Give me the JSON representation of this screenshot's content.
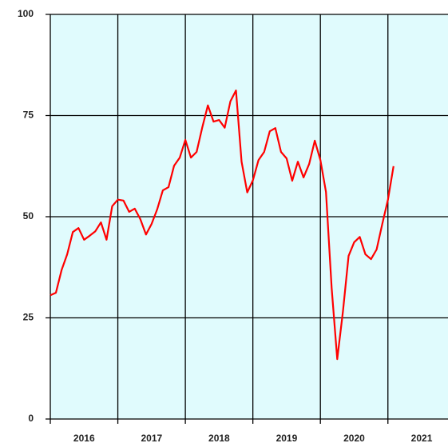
{
  "chart_data": {
    "type": "line",
    "x": [
      2016.0,
      2016.083,
      2016.167,
      2016.25,
      2016.333,
      2016.417,
      2016.5,
      2016.583,
      2016.667,
      2016.75,
      2016.833,
      2016.917,
      2017.0,
      2017.083,
      2017.167,
      2017.25,
      2017.333,
      2017.417,
      2017.5,
      2017.583,
      2017.667,
      2017.75,
      2017.833,
      2017.917,
      2018.0,
      2018.083,
      2018.167,
      2018.25,
      2018.333,
      2018.417,
      2018.5,
      2018.583,
      2018.667,
      2018.75,
      2018.833,
      2018.917,
      2019.0,
      2019.083,
      2019.167,
      2019.25,
      2019.333,
      2019.417,
      2019.5,
      2019.583,
      2019.667,
      2019.75,
      2019.833,
      2019.917,
      2020.0,
      2020.083,
      2020.167,
      2020.25,
      2020.333,
      2020.417,
      2020.5,
      2020.583,
      2020.667,
      2020.75,
      2020.833,
      2020.917,
      2021.0,
      2021.083
    ],
    "series": [
      {
        "color": "#ff0000",
        "values": [
          30.6,
          31.2,
          36.8,
          40.7,
          46.2,
          47.2,
          44.3,
          45.3,
          46.4,
          48.6,
          44.3,
          52.6,
          54.2,
          54.0,
          51.2,
          52.0,
          49.4,
          45.6,
          48.2,
          51.8,
          56.5,
          57.3,
          62.6,
          64.6,
          69.0,
          64.6,
          66.0,
          72.0,
          77.5,
          73.5,
          73.9,
          72.0,
          78.5,
          81.2,
          63.6,
          56.0,
          59.0,
          64.0,
          66.0,
          71.1,
          71.9,
          66.0,
          64.4,
          58.9,
          63.6,
          59.7,
          63.0,
          68.8,
          64.0,
          56.1,
          32.4,
          14.8,
          26.5,
          40.3,
          43.7,
          45.0,
          40.7,
          39.5,
          41.9,
          48.2,
          54.2,
          62.5
        ]
      }
    ],
    "xlim": [
      2016,
      2021.89
    ],
    "xticks": [
      {
        "value": 2016.5,
        "label": "2016"
      },
      {
        "value": 2017.5,
        "label": "2017"
      },
      {
        "value": 2018.5,
        "label": "2018"
      },
      {
        "value": 2019.5,
        "label": "2019"
      },
      {
        "value": 2020.5,
        "label": "2020"
      },
      {
        "value": 2021.5,
        "label": "2021"
      }
    ],
    "ylim": [
      0,
      100
    ],
    "yticks": [
      0,
      25,
      50,
      75,
      100
    ],
    "grid": true,
    "background": "#e0fbfd"
  }
}
